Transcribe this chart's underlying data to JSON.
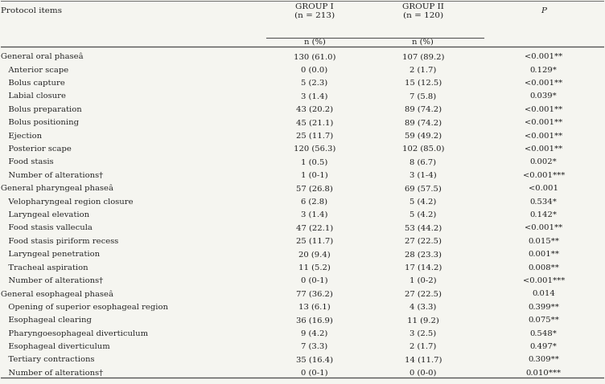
{
  "title_col0": "Protocol items",
  "title_col1": "GROUP I\n(n = 213)",
  "title_col2": "GROUP II\n(n = 120)",
  "title_col3": "P",
  "subtitle_col1": "n (%)",
  "subtitle_col2": "n (%)",
  "rows": [
    {
      "label": "General oral phaseâ",
      "col1": "130 (61.0)",
      "col2": "107 (89.2)",
      "col3": "<0.001**",
      "bold": true,
      "indent": false
    },
    {
      "label": "Anterior scape",
      "col1": "0 (0.0)",
      "col2": "2 (1.7)",
      "col3": "0.129*",
      "bold": false,
      "indent": true
    },
    {
      "label": "Bolus capture",
      "col1": "5 (2.3)",
      "col2": "15 (12.5)",
      "col3": "<0.001**",
      "bold": false,
      "indent": true
    },
    {
      "label": "Labial closure",
      "col1": "3 (1.4)",
      "col2": "7 (5.8)",
      "col3": "0.039*",
      "bold": false,
      "indent": true
    },
    {
      "label": "Bolus preparation",
      "col1": "43 (20.2)",
      "col2": "89 (74.2)",
      "col3": "<0.001**",
      "bold": false,
      "indent": true
    },
    {
      "label": "Bolus positioning",
      "col1": "45 (21.1)",
      "col2": "89 (74.2)",
      "col3": "<0.001**",
      "bold": false,
      "indent": true
    },
    {
      "label": "Ejection",
      "col1": "25 (11.7)",
      "col2": "59 (49.2)",
      "col3": "<0.001**",
      "bold": false,
      "indent": true
    },
    {
      "label": "Posterior scape",
      "col1": "120 (56.3)",
      "col2": "102 (85.0)",
      "col3": "<0.001**",
      "bold": false,
      "indent": true
    },
    {
      "label": "Food stasis",
      "col1": "1 (0.5)",
      "col2": "8 (6.7)",
      "col3": "0.002*",
      "bold": false,
      "indent": true
    },
    {
      "label": "Number of alterations†",
      "col1": "1 (0-1)",
      "col2": "3 (1-4)",
      "col3": "<0.001***",
      "bold": false,
      "indent": true
    },
    {
      "label": "General pharyngeal phaseâ",
      "col1": "57 (26.8)",
      "col2": "69 (57.5)",
      "col3": "<0.001",
      "bold": true,
      "indent": false
    },
    {
      "label": "Velopharyngeal region closure",
      "col1": "6 (2.8)",
      "col2": "5 (4.2)",
      "col3": "0.534*",
      "bold": false,
      "indent": true
    },
    {
      "label": "Laryngeal elevation",
      "col1": "3 (1.4)",
      "col2": "5 (4.2)",
      "col3": "0.142*",
      "bold": false,
      "indent": true
    },
    {
      "label": "Food stasis vallecula",
      "col1": "47 (22.1)",
      "col2": "53 (44.2)",
      "col3": "<0.001**",
      "bold": false,
      "indent": true
    },
    {
      "label": "Food stasis piriform recess",
      "col1": "25 (11.7)",
      "col2": "27 (22.5)",
      "col3": "0.015**",
      "bold": false,
      "indent": true
    },
    {
      "label": "Laryngeal penetration",
      "col1": "20 (9.4)",
      "col2": "28 (23.3)",
      "col3": "0.001**",
      "bold": false,
      "indent": true
    },
    {
      "label": "Tracheal aspiration",
      "col1": "11 (5.2)",
      "col2": "17 (14.2)",
      "col3": "0.008**",
      "bold": false,
      "indent": true
    },
    {
      "label": "Number of alterations†",
      "col1": "0 (0-1)",
      "col2": "1 (0-2)",
      "col3": "<0.001***",
      "bold": false,
      "indent": true
    },
    {
      "label": "General esophageal phaseâ",
      "col1": "77 (36.2)",
      "col2": "27 (22.5)",
      "col3": "0.014",
      "bold": true,
      "indent": false
    },
    {
      "label": "Opening of superior esophageal region",
      "col1": "13 (6.1)",
      "col2": "4 (3.3)",
      "col3": "0.399**",
      "bold": false,
      "indent": true
    },
    {
      "label": "Esophageal clearing",
      "col1": "36 (16.9)",
      "col2": "11 (9.2)",
      "col3": "0.075**",
      "bold": false,
      "indent": true
    },
    {
      "label": "Pharyngoesophageal diverticulum",
      "col1": "9 (4.2)",
      "col2": "3 (2.5)",
      "col3": "0.548*",
      "bold": false,
      "indent": true
    },
    {
      "label": "Esophageal diverticulum",
      "col1": "7 (3.3)",
      "col2": "2 (1.7)",
      "col3": "0.497*",
      "bold": false,
      "indent": true
    },
    {
      "label": "Tertiary contractions",
      "col1": "35 (16.4)",
      "col2": "14 (11.7)",
      "col3": "0.309**",
      "bold": false,
      "indent": true
    },
    {
      "label": "Number of alterations†",
      "col1": "0 (0-1)",
      "col2": "0 (0-0)",
      "col3": "0.010***",
      "bold": false,
      "indent": true
    }
  ],
  "bg_color": "#f5f5f0",
  "text_color": "#222222",
  "line_color": "#555555",
  "font_size": 7.2,
  "header_font_size": 7.5
}
